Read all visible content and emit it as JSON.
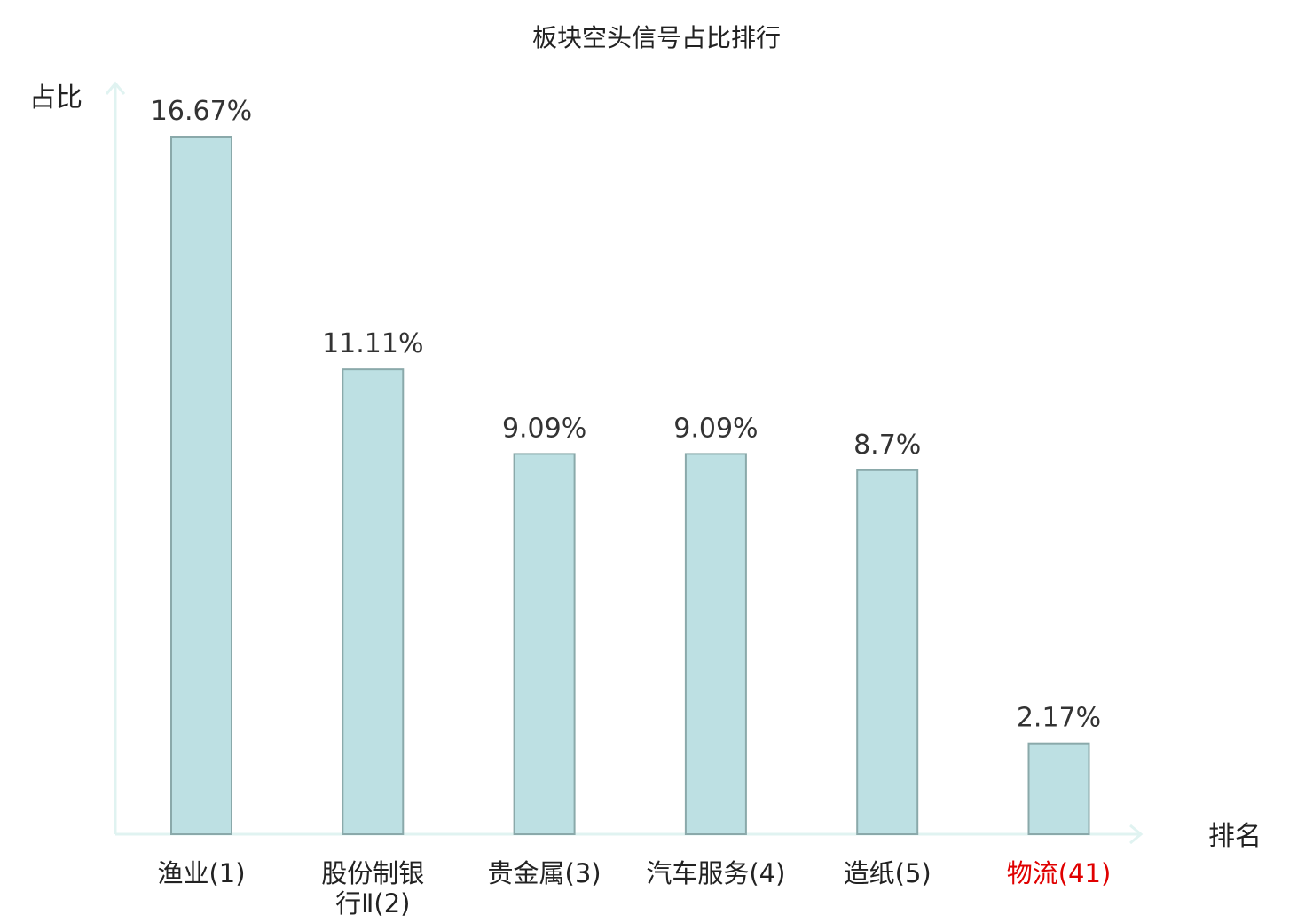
{
  "chart_data": {
    "type": "bar",
    "title": "板块空头信号占比排行",
    "ylabel": "占比",
    "xlabel": "排名",
    "ylim": [
      0,
      18
    ],
    "grid": false,
    "legend": "none",
    "categories": [
      {
        "lines": [
          "渔业(1)"
        ],
        "highlight": false
      },
      {
        "lines": [
          "股份制银",
          "行Ⅱ(2)"
        ],
        "highlight": false
      },
      {
        "lines": [
          "贵金属(3)"
        ],
        "highlight": false
      },
      {
        "lines": [
          "汽车服务(4)"
        ],
        "highlight": false
      },
      {
        "lines": [
          "造纸(5)"
        ],
        "highlight": false
      },
      {
        "lines": [
          "物流(41)"
        ],
        "highlight": true
      }
    ],
    "values": [
      16.67,
      11.11,
      9.09,
      9.09,
      8.7,
      2.17
    ],
    "value_labels": [
      "16.67%",
      "11.11%",
      "9.09%",
      "9.09%",
      "8.7%",
      "2.17%"
    ],
    "colors": {
      "bar_fill": "#bde0e3",
      "bar_stroke": "#8aa9aa",
      "axis": "#e0f3f1",
      "highlight_text": "#e00000",
      "normal_text": "#222222"
    }
  }
}
